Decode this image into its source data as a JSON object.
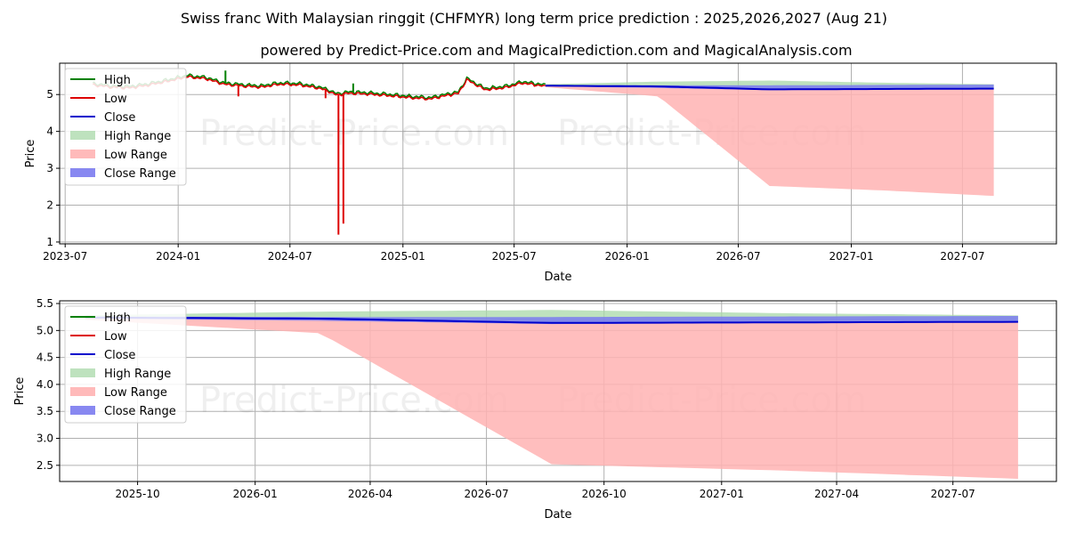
{
  "header": {
    "title": "Swiss franc With Malaysian ringgit (CHFMYR) long term price prediction : 2025,2026,2027 (Aug 21)",
    "subtitle": "powered by Predict-Price.com and MagicalPrediction.com and MagicalAnalysis.com",
    "watermark": "Predict-Price.com"
  },
  "colors": {
    "high": "#008000",
    "low": "#dd0000",
    "close": "#0000cc",
    "high_range": "#a8d8a8",
    "low_range": "#ffb3b3",
    "close_range": "#7b7bf0"
  },
  "legend": [
    "High",
    "Low",
    "Close",
    "High Range",
    "Low Range",
    "Close Range"
  ],
  "chart_data": [
    {
      "type": "line",
      "xlabel": "Date",
      "ylabel": "Price",
      "xlim": [
        "2023-06-22",
        "2027-12-01"
      ],
      "ylim": [
        0.95,
        5.85
      ],
      "x_ticks": [
        "2023-07-01",
        "2024-01-01",
        "2024-07-01",
        "2025-01-01",
        "2025-07-01",
        "2026-01-01",
        "2026-07-01",
        "2027-01-01",
        "2027-07-01"
      ],
      "x_tick_labels": [
        "2023-07",
        "2024-01",
        "2024-07",
        "2025-01",
        "2025-07",
        "2026-01",
        "2026-07",
        "2027-01",
        "2027-07"
      ],
      "y_ticks": [
        1,
        2,
        3,
        4,
        5
      ],
      "y_tick_labels": [
        "1",
        "2",
        "3",
        "4",
        "5"
      ],
      "legend_position": "upper-left",
      "history": {
        "dates": [
          "2023-08-15",
          "2023-09-15",
          "2023-10-15",
          "2023-11-15",
          "2023-12-15",
          "2024-01-15",
          "2024-02-15",
          "2024-03-15",
          "2024-04-15",
          "2024-05-15",
          "2024-06-15",
          "2024-07-15",
          "2024-08-15",
          "2024-09-01",
          "2024-09-15",
          "2024-10-01",
          "2024-10-15",
          "2024-11-15",
          "2024-12-15",
          "2025-01-15",
          "2025-02-15",
          "2025-03-15",
          "2025-04-01",
          "2025-04-15",
          "2025-05-15",
          "2025-06-15",
          "2025-07-15",
          "2025-08-21"
        ],
        "close": [
          5.28,
          5.22,
          5.2,
          5.28,
          5.38,
          5.5,
          5.45,
          5.3,
          5.25,
          5.22,
          5.3,
          5.28,
          5.2,
          5.12,
          5.0,
          5.05,
          5.05,
          5.02,
          4.98,
          4.93,
          4.9,
          5.0,
          5.05,
          5.42,
          5.15,
          5.2,
          5.33,
          5.24
        ]
      },
      "history_spikes": [
        {
          "date": "2024-03-18",
          "series": "High",
          "value": 5.65
        },
        {
          "date": "2024-04-08",
          "series": "Low",
          "value": 4.95
        },
        {
          "date": "2024-08-28",
          "series": "Low",
          "value": 4.9
        },
        {
          "date": "2024-09-18",
          "series": "Low",
          "value": 1.2
        },
        {
          "date": "2024-09-26",
          "series": "Low",
          "value": 1.5
        },
        {
          "date": "2024-10-12",
          "series": "High",
          "value": 5.3
        }
      ],
      "forecast": {
        "dates": [
          "2025-08-21",
          "2026-02-21",
          "2026-08-21",
          "2027-02-21",
          "2027-08-21"
        ],
        "close": [
          5.24,
          5.22,
          5.14,
          5.15,
          5.16
        ],
        "high_range": [
          5.28,
          5.35,
          5.38,
          5.32,
          5.28
        ],
        "close_range_upper": [
          5.26,
          5.25,
          5.25,
          5.26,
          5.27
        ],
        "close_range_lower": [
          5.22,
          5.18,
          5.12,
          5.14,
          5.15
        ],
        "low_range": [
          5.2,
          4.95,
          2.52,
          2.4,
          2.25
        ]
      }
    },
    {
      "type": "line",
      "xlabel": "Date",
      "ylabel": "Price",
      "xlim": [
        "2025-08-01",
        "2027-09-20"
      ],
      "ylim": [
        2.2,
        5.55
      ],
      "x_ticks": [
        "2025-10-01",
        "2026-01-01",
        "2026-04-01",
        "2026-07-01",
        "2026-10-01",
        "2027-01-01",
        "2027-04-01",
        "2027-07-01"
      ],
      "x_tick_labels": [
        "2025-10",
        "2026-01",
        "2026-04",
        "2026-07",
        "2026-10",
        "2027-01",
        "2027-04",
        "2027-07"
      ],
      "y_ticks": [
        2.5,
        3.0,
        3.5,
        4.0,
        4.5,
        5.0,
        5.5
      ],
      "y_tick_labels": [
        "2.5",
        "3.0",
        "3.5",
        "4.0",
        "4.5",
        "5.0",
        "5.5"
      ],
      "legend_position": "upper-left",
      "forecast": {
        "dates": [
          "2025-08-21",
          "2026-02-21",
          "2026-08-21",
          "2027-02-21",
          "2027-08-21"
        ],
        "close": [
          5.24,
          5.22,
          5.14,
          5.15,
          5.16
        ],
        "high_range": [
          5.28,
          5.35,
          5.38,
          5.32,
          5.28
        ],
        "close_range_upper": [
          5.26,
          5.25,
          5.25,
          5.26,
          5.27
        ],
        "close_range_lower": [
          5.22,
          5.18,
          5.12,
          5.14,
          5.15
        ],
        "low_range": [
          5.2,
          4.95,
          2.52,
          2.4,
          2.25
        ]
      }
    }
  ]
}
